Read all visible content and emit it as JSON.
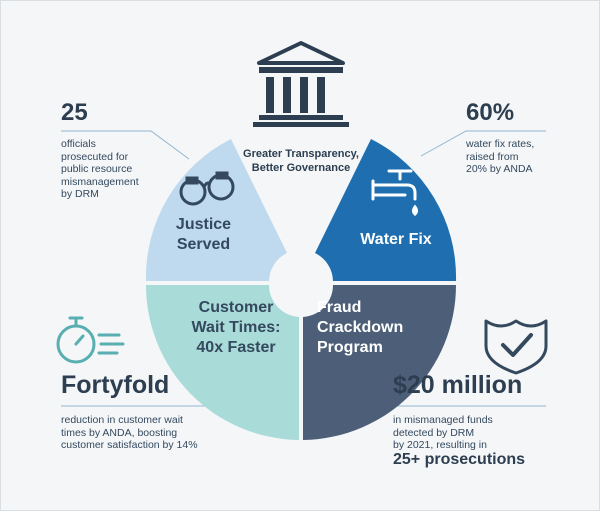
{
  "center": {
    "title_line1": "Greater Transparency,",
    "title_line2": "Better Governance",
    "icon": "government-building-icon"
  },
  "segments": {
    "justice": {
      "line1": "Justice",
      "line2": "Served",
      "color": "#bfd9ee",
      "text_color": "#34495e",
      "icon": "handcuffs-icon"
    },
    "water": {
      "label": "Water Fix",
      "color": "#1f6fb0",
      "text_color": "#ffffff",
      "icon": "water-faucet-icon"
    },
    "customer": {
      "line1": "Customer",
      "line2": "Wait Times:",
      "line3": "40x Faster",
      "color": "#a9dbd8",
      "text_color": "#34495e"
    },
    "fraud": {
      "line1": "Fraud",
      "line2": "Crackdown",
      "line3": "Program",
      "color": "#4d5f78",
      "text_color": "#ffffff"
    }
  },
  "stats": {
    "officials": {
      "value": "25",
      "line1": "officials",
      "line2": "prosecuted for",
      "line3": "public resource",
      "line4": "mismanagement",
      "line5": "by DRM"
    },
    "water_rate": {
      "value": "60%",
      "line1": "water fix rates,",
      "line2": "raised from",
      "line3": "20% by ANDA"
    },
    "wait": {
      "value": "Fortyfold",
      "line1": "reduction in customer wait",
      "line2": "times by ANDA, boosting",
      "line3": "customer satisfaction by 14%",
      "icon": "stopwatch-icon"
    },
    "funds": {
      "value": "$20 million",
      "line1": "in mismanaged funds",
      "line2": "detected by DRM",
      "line3": "by 2021, resulting in",
      "line4": "25+ prosecutions",
      "icon": "shield-check-icon"
    }
  },
  "colors": {
    "accent_teal": "#58aeb0",
    "dark_navy": "#2c3e50",
    "connector": "#8fb7cf"
  }
}
